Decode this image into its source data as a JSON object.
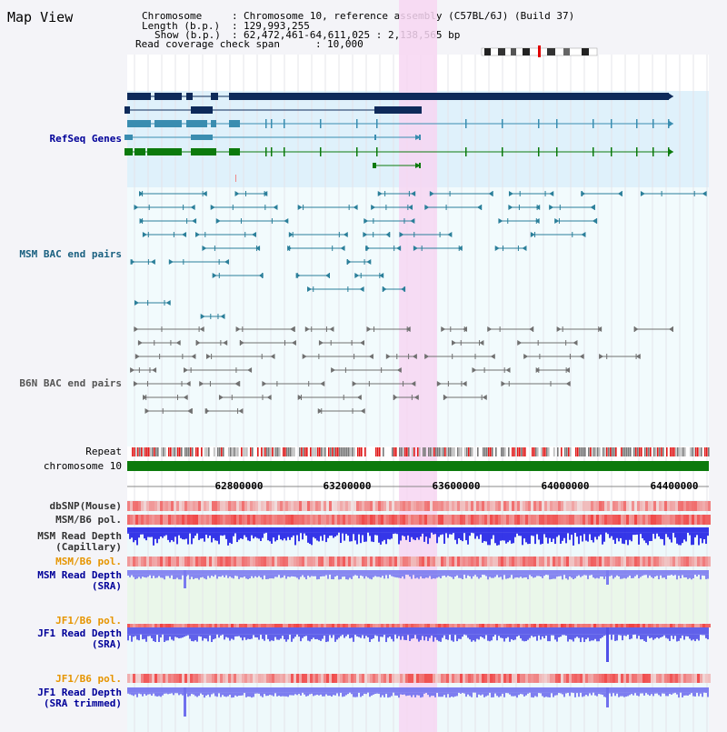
{
  "view": {
    "title": "Map View",
    "info": {
      "chromosome_key": "Chromosome",
      "chromosome_val": "Chromosome 10, reference assembly (C57BL/6J) (Build 37)",
      "length_key": "Length (b.p.)",
      "length_val": "129,993,255",
      "show_key": "Show (b.p.)",
      "show_val": "62,472,461-64,611,025 : 2,138,565 bp",
      "span_key": "Read coverage check span",
      "span_val": "10,000"
    }
  },
  "tracks": {
    "refseq": "RefSeq Genes",
    "msm_bac": "MSM BAC end pairs",
    "b6n_bac": "B6N BAC end pairs",
    "repeat": "Repeat",
    "chromosome": "chromosome 10",
    "dbsnp": "dbSNP(Mouse)",
    "msm_b6_pol": "MSM/B6 pol.",
    "msm_read_cap_1": "MSM Read Depth",
    "msm_read_cap_2": "(Capillary)",
    "msm_b6_pol_2": "MSM/B6 pol.",
    "msm_read_sra_1": "MSM Read Depth",
    "msm_read_sra_2": "(SRA)",
    "jf1_b6_pol": "JF1/B6 pol.",
    "jf1_read_sra_1": "JF1 Read Depth",
    "jf1_read_sra_2": "(SRA)",
    "jf1_b6_pol_2": "JF1/B6 pol.",
    "jf1_read_trim_1": "JF1 Read Depth",
    "jf1_read_trim_2": "(SRA trimmed)"
  },
  "axis": {
    "ticks": [
      "62800000",
      "63200000",
      "63600000",
      "64000000",
      "64400000"
    ]
  },
  "colors": {
    "refseq_navy": "#0e2a5a",
    "refseq_blue": "#3a8db0",
    "refseq_green": "#0c7a0c",
    "highlight": "#f7d6f2",
    "depth_blue": "#2323e8",
    "pol_red": "#ee4444"
  }
}
